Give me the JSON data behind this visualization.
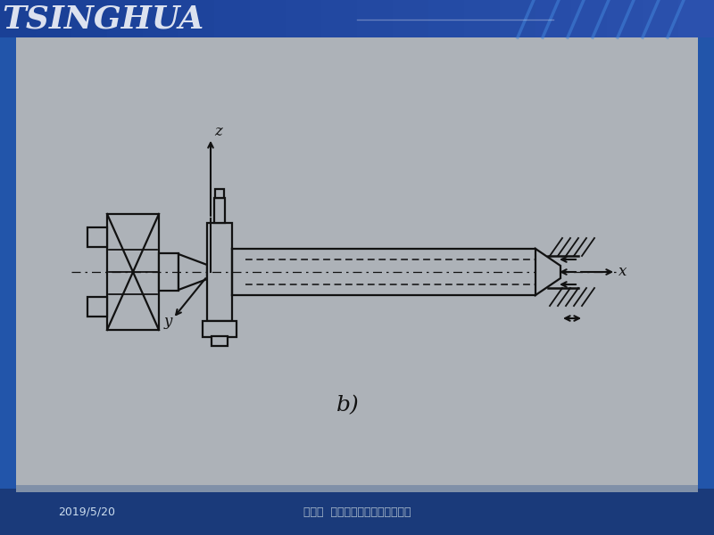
{
  "border_color": "#2255aa",
  "panel_color": "#adb2b8",
  "top_bar_color_left": "#1a4aaa",
  "top_bar_color_right": "#3a6acc",
  "bottom_bar_color": "#1a3a7a",
  "bottom_bar2_color": "#b0b8c5",
  "line_color": "#111111",
  "label_b": "b)",
  "label_x": "x",
  "label_y": "y",
  "label_z": "z",
  "footer_left": "2019/5/20",
  "footer_center": "杨继荣  机械制造技术基础教学课件"
}
